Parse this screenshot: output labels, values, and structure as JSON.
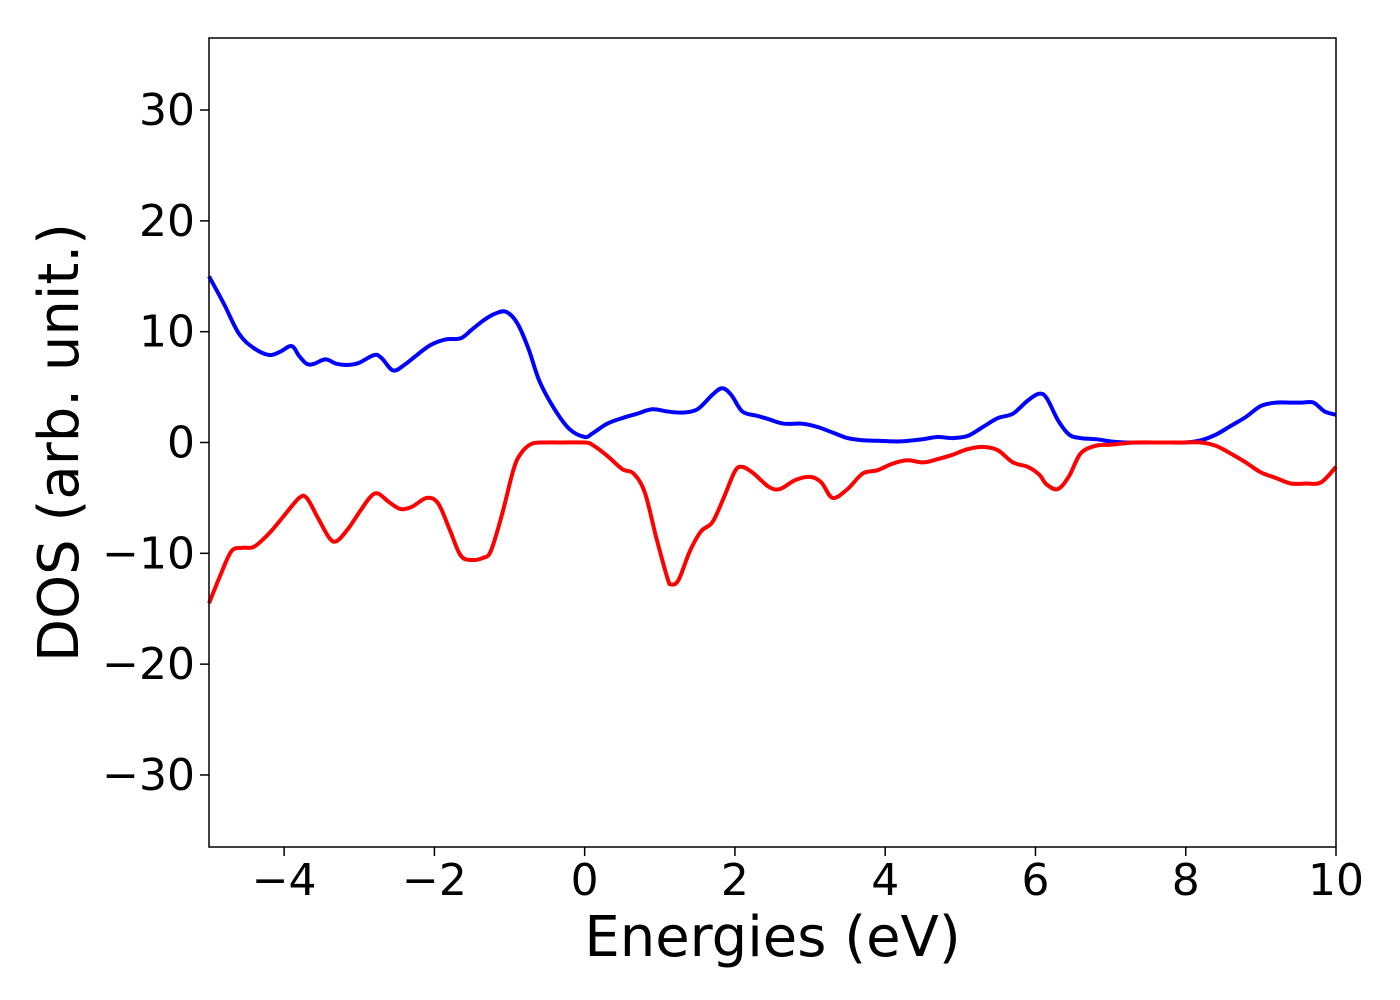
{
  "chart_data": {
    "type": "line",
    "xlabel": "Energies (eV)",
    "ylabel": "DOS (arb. unit.)",
    "xlim": [
      -5,
      10
    ],
    "ylim": [
      -36.5,
      36.5
    ],
    "xticks": [
      -4,
      -2,
      0,
      2,
      4,
      6,
      8,
      10
    ],
    "xtick_labels": [
      "−4",
      "−2",
      "0",
      "2",
      "4",
      "6",
      "8",
      "10"
    ],
    "yticks": [
      30,
      20,
      10,
      0,
      -10,
      -20,
      -30
    ],
    "ytick_labels": [
      "30",
      "20",
      "10",
      "0",
      "−10",
      "−20",
      "−30"
    ],
    "grid": false,
    "legend": "none",
    "series": [
      {
        "color": "#0000ff",
        "x": [
          -5.0,
          -4.8,
          -4.6,
          -4.4,
          -4.2,
          -4.05,
          -3.9,
          -3.8,
          -3.7,
          -3.6,
          -3.45,
          -3.3,
          -3.15,
          -3.0,
          -2.8,
          -2.7,
          -2.55,
          -2.4,
          -2.25,
          -2.05,
          -1.85,
          -1.65,
          -1.5,
          -1.35,
          -1.2,
          -1.05,
          -0.9,
          -0.75,
          -0.6,
          -0.4,
          -0.2,
          0.0,
          0.1,
          0.3,
          0.5,
          0.7,
          0.9,
          1.1,
          1.3,
          1.5,
          1.7,
          1.83,
          1.95,
          2.1,
          2.3,
          2.45,
          2.65,
          2.9,
          3.1,
          3.3,
          3.5,
          3.7,
          3.9,
          4.2,
          4.5,
          4.7,
          4.9,
          5.1,
          5.3,
          5.5,
          5.7,
          5.9,
          6.05,
          6.15,
          6.3,
          6.45,
          6.6,
          6.8,
          7.0,
          7.2,
          7.5,
          7.8,
          8.0,
          8.2,
          8.4,
          8.6,
          8.8,
          9.0,
          9.2,
          9.4,
          9.55,
          9.7,
          9.85,
          10.0
        ],
        "y": [
          15.0,
          12.5,
          9.8,
          8.5,
          7.9,
          8.2,
          8.7,
          7.8,
          7.1,
          7.1,
          7.5,
          7.1,
          7.0,
          7.2,
          7.9,
          7.6,
          6.5,
          7.0,
          7.8,
          8.8,
          9.3,
          9.4,
          10.2,
          11.0,
          11.6,
          11.8,
          10.8,
          8.5,
          5.5,
          3.0,
          1.2,
          0.5,
          0.8,
          1.7,
          2.2,
          2.6,
          3.0,
          2.8,
          2.7,
          3.0,
          4.3,
          4.9,
          4.3,
          2.8,
          2.4,
          2.1,
          1.7,
          1.7,
          1.4,
          0.9,
          0.4,
          0.2,
          0.15,
          0.1,
          0.3,
          0.5,
          0.4,
          0.6,
          1.4,
          2.2,
          2.6,
          3.8,
          4.4,
          4.0,
          2.0,
          0.7,
          0.4,
          0.3,
          0.1,
          0.0,
          0.0,
          0.0,
          0.0,
          0.2,
          0.7,
          1.5,
          2.3,
          3.3,
          3.6,
          3.6,
          3.6,
          3.6,
          2.8,
          2.5
        ]
      },
      {
        "color": "#ff0000",
        "x": [
          -5.0,
          -4.85,
          -4.7,
          -4.55,
          -4.4,
          -4.2,
          -4.0,
          -3.8,
          -3.7,
          -3.55,
          -3.4,
          -3.3,
          -3.15,
          -3.0,
          -2.85,
          -2.75,
          -2.6,
          -2.45,
          -2.3,
          -2.1,
          -1.95,
          -1.8,
          -1.65,
          -1.5,
          -1.35,
          -1.25,
          -1.1,
          -0.95,
          -0.85,
          -0.7,
          -0.5,
          -0.3,
          0.0,
          0.1,
          0.3,
          0.5,
          0.65,
          0.8,
          0.95,
          1.1,
          1.15,
          1.25,
          1.4,
          1.55,
          1.7,
          1.85,
          2.0,
          2.1,
          2.25,
          2.45,
          2.6,
          2.8,
          3.0,
          3.15,
          3.3,
          3.5,
          3.7,
          3.9,
          4.1,
          4.3,
          4.5,
          4.7,
          4.9,
          5.1,
          5.3,
          5.5,
          5.7,
          5.9,
          6.05,
          6.15,
          6.3,
          6.45,
          6.6,
          6.8,
          7.0,
          7.3,
          7.6,
          7.9,
          8.2,
          8.4,
          8.6,
          8.8,
          9.0,
          9.2,
          9.4,
          9.6,
          9.8,
          10.0
        ],
        "y": [
          -14.5,
          -12.0,
          -9.8,
          -9.5,
          -9.4,
          -8.2,
          -6.6,
          -5.0,
          -5.0,
          -6.8,
          -8.6,
          -8.9,
          -7.8,
          -6.3,
          -4.9,
          -4.6,
          -5.4,
          -6.0,
          -5.8,
          -5.0,
          -5.5,
          -7.8,
          -10.2,
          -10.6,
          -10.4,
          -9.8,
          -6.5,
          -2.5,
          -1.0,
          -0.1,
          0.0,
          0.0,
          0.0,
          -0.2,
          -1.2,
          -2.4,
          -2.8,
          -4.5,
          -8.5,
          -12.2,
          -12.8,
          -12.4,
          -9.8,
          -8.0,
          -7.2,
          -5.0,
          -2.6,
          -2.2,
          -2.8,
          -4.0,
          -4.2,
          -3.4,
          -3.1,
          -3.6,
          -5.0,
          -4.2,
          -2.8,
          -2.5,
          -1.9,
          -1.6,
          -1.8,
          -1.5,
          -1.1,
          -0.6,
          -0.4,
          -0.7,
          -1.8,
          -2.2,
          -2.9,
          -3.8,
          -4.2,
          -3.0,
          -1.0,
          -0.3,
          -0.2,
          0.0,
          0.0,
          0.0,
          0.0,
          -0.3,
          -1.0,
          -1.8,
          -2.7,
          -3.2,
          -3.7,
          -3.7,
          -3.6,
          -2.2
        ]
      }
    ]
  }
}
